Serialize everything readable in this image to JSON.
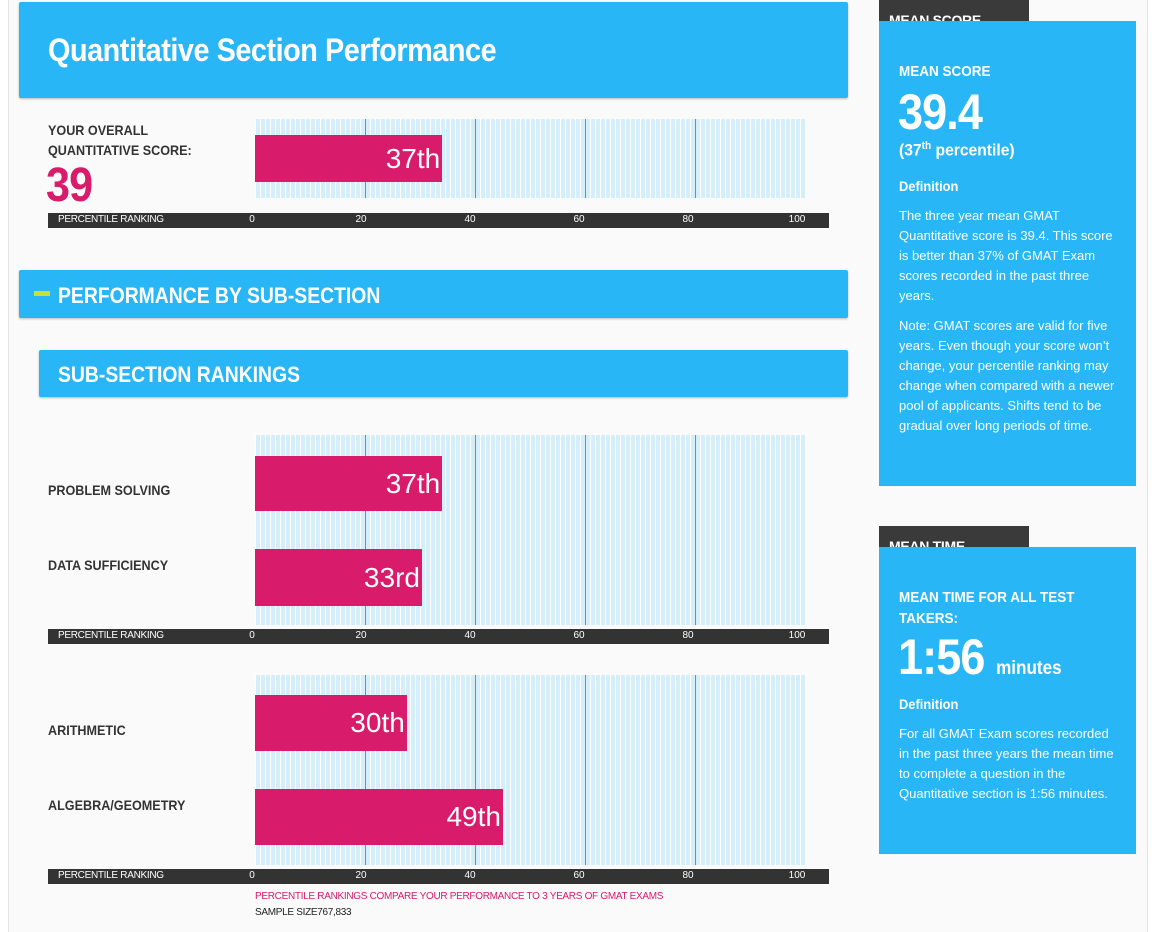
{
  "header": {
    "title": "Quantitative Section Performance"
  },
  "overall": {
    "label_line1": "YOUR OVERALL",
    "label_line2": "QUANTITATIVE SCORE:",
    "score": "39",
    "rank_label": "37th"
  },
  "sub_section": {
    "title": "PERFORMANCE BY SUB-SECTION"
  },
  "rankings": {
    "title": "SUB-SECTION RANKINGS"
  },
  "axis": {
    "title": "PERCENTILE RANKING",
    "ticks": [
      "0",
      "20",
      "40",
      "60",
      "80",
      "100"
    ]
  },
  "footer": {
    "note": "PERCENTILE RANKINGS COMPARE YOUR PERFORMANCE TO 3 YEARS OF GMAT EXAMS",
    "sample": "SAMPLE SIZE767,833"
  },
  "colors": {
    "accent": "#29b6f6",
    "bar": "#d81b6a",
    "dark": "#3a3a3a",
    "plot_bg": "#d4effa"
  },
  "chart_data": [
    {
      "type": "bar",
      "orientation": "horizontal",
      "categories": [
        "YOUR OVERALL QUANTITATIVE SCORE"
      ],
      "values": [
        37
      ],
      "data_labels": [
        "37th"
      ],
      "xlabel": "PERCENTILE RANKING",
      "xlim": [
        0,
        100
      ],
      "xticks": [
        0,
        20,
        40,
        60,
        80,
        100
      ]
    },
    {
      "type": "bar",
      "orientation": "horizontal",
      "categories": [
        "PROBLEM SOLVING",
        "DATA SUFFICIENCY"
      ],
      "values": [
        37,
        33
      ],
      "data_labels": [
        "37th",
        "33rd"
      ],
      "xlabel": "PERCENTILE RANKING",
      "xlim": [
        0,
        100
      ],
      "xticks": [
        0,
        20,
        40,
        60,
        80,
        100
      ]
    },
    {
      "type": "bar",
      "orientation": "horizontal",
      "categories": [
        "ARITHMETIC",
        "ALGEBRA/GEOMETRY"
      ],
      "values": [
        30,
        49
      ],
      "data_labels": [
        "30th",
        "49th"
      ],
      "xlabel": "PERCENTILE RANKING",
      "xlim": [
        0,
        100
      ],
      "xticks": [
        0,
        20,
        40,
        60,
        80,
        100
      ]
    }
  ],
  "mean_score": {
    "tab": "MEAN SCORE",
    "heading": "MEAN SCORE",
    "value": "39.4",
    "pct_open": "(37",
    "pct_sup": "th",
    "pct_close": " percentile)",
    "definition_label": "Definition",
    "definition": "The three year mean GMAT Quantitative score is 39.4. This score is better than 37% of GMAT Exam scores recorded in the past three years.",
    "note": "Note: GMAT scores are valid for five years. Even though your score won’t change, your percentile ranking may change when compared with a newer pool of applicants. Shifts tend to be gradual over long periods of time."
  },
  "mean_time": {
    "tab": "MEAN TIME",
    "heading_line1": "MEAN TIME FOR ALL TEST",
    "heading_line2": "TAKERS:",
    "value": "1:56",
    "unit": "minutes",
    "definition_label": "Definition",
    "definition": "For all GMAT Exam scores recorded in the past three years the mean time to complete a question in the Quantitative section is 1:56 minutes."
  }
}
